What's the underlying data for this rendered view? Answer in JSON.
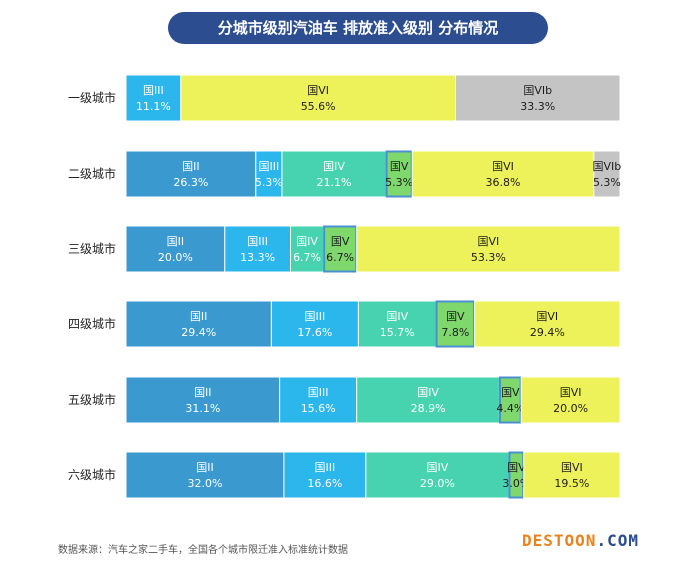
{
  "title": "分城市级别汽油车 排放准入级别 分布情况",
  "source": "数据来源：汽车之家二手车，全国各个城市限迁准入标准统计数据",
  "watermark": {
    "main": "DESTOON",
    "suffix": ".COM"
  },
  "colors": {
    "国II": "#3a9ad0",
    "国III": "#2bb6ec",
    "国IV": "#47d2b0",
    "国V": "#7fd86c",
    "国VI": "#eef25a",
    "国VIb": "#c4c4c4",
    "accent_outline": "#4a8fcf"
  },
  "chart_data": {
    "type": "bar",
    "orientation": "horizontal",
    "stacked": true,
    "unit": "%",
    "xlim": [
      0,
      100
    ],
    "categories": [
      "一级城市",
      "二级城市",
      "三级城市",
      "四级城市",
      "五级城市",
      "六级城市"
    ],
    "series": [
      {
        "name": "国II",
        "values": [
          null,
          26.3,
          20.0,
          29.4,
          31.1,
          32.0
        ]
      },
      {
        "name": "国III",
        "values": [
          11.1,
          5.3,
          13.3,
          17.6,
          15.6,
          16.6
        ]
      },
      {
        "name": "国IV",
        "values": [
          null,
          21.1,
          6.7,
          15.7,
          28.9,
          29.0
        ]
      },
      {
        "name": "国V",
        "values": [
          null,
          5.3,
          6.7,
          7.8,
          4.4,
          3.0
        ]
      },
      {
        "name": "国VI",
        "values": [
          55.6,
          36.8,
          53.3,
          29.4,
          20.0,
          19.5
        ]
      },
      {
        "name": "国VIb",
        "values": [
          33.3,
          5.3,
          null,
          null,
          null,
          null
        ]
      }
    ],
    "labels": [
      [
        "国III|11.1%",
        "国VI|55.6%",
        "国VIb|33.3%"
      ],
      [
        "国II|26.3%",
        "国III|5.3%",
        "国IV|21.1%",
        "国V|5.3%",
        "国VI|36.8%",
        "国VIb|5.3%"
      ],
      [
        "国II|20.0%",
        "国III|13.3%",
        "国IV|6.7%",
        "国V|6.7%",
        "国VI|53.3%"
      ],
      [
        "国II|29.4%",
        "国III|17.6%",
        "国IV|15.7%",
        "国V|7.8%",
        "国VI|29.4%"
      ],
      [
        "国II|31.1%",
        "国III|15.6%",
        "国IV|28.9%",
        "国V|4.4%",
        "国VI|20.0%"
      ],
      [
        "国II|32.0%",
        "国III|16.6%",
        "国IV|29.0%",
        "国V|3.0%",
        "国VI|19.5%"
      ]
    ]
  }
}
